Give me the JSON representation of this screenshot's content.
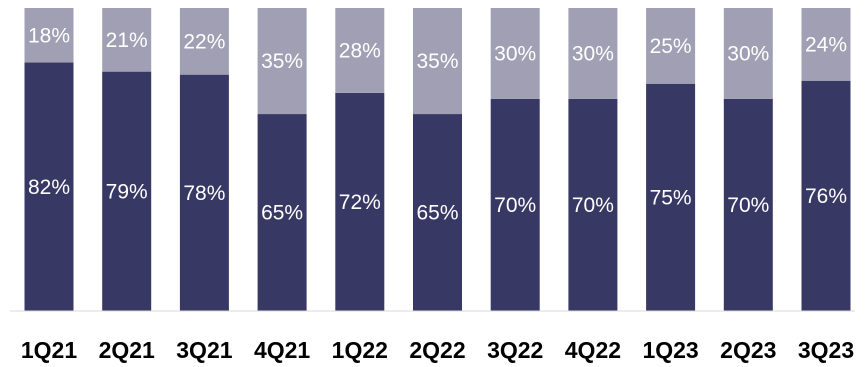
{
  "chart_data": {
    "type": "bar",
    "stacked": true,
    "percent_stacked": true,
    "categories": [
      "1Q21",
      "2Q21",
      "3Q21",
      "4Q21",
      "1Q22",
      "2Q22",
      "3Q22",
      "4Q22",
      "1Q23",
      "2Q23",
      "3Q23"
    ],
    "series": [
      {
        "values": [
          82,
          79,
          78,
          65,
          72,
          65,
          70,
          70,
          75,
          70,
          76
        ],
        "labels": [
          "82%",
          "79%",
          "78%",
          "65%",
          "72%",
          "65%",
          "70%",
          "70%",
          "75%",
          "70%",
          "76%"
        ],
        "color": "#383864"
      },
      {
        "values": [
          18,
          21,
          22,
          35,
          28,
          35,
          30,
          30,
          25,
          30,
          24
        ],
        "labels": [
          "18%",
          "21%",
          "22%",
          "35%",
          "28%",
          "35%",
          "30%",
          "30%",
          "25%",
          "30%",
          "24%"
        ],
        "color": "#a09fb4"
      }
    ],
    "title": "",
    "xlabel": "",
    "ylabel": "",
    "ylim": [
      0,
      100
    ],
    "grid": false,
    "legend": "none",
    "axis_color": "#d9d9d9"
  }
}
